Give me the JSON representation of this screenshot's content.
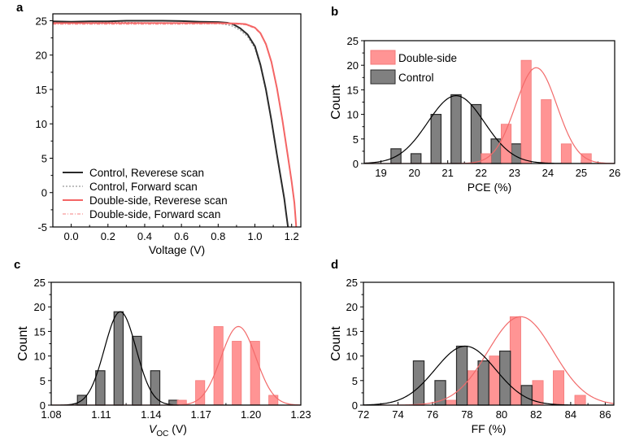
{
  "colors": {
    "control_bar": "#808080",
    "control_bar_edge": "#2b2b2b",
    "control_fit": "#000000",
    "double_bar": "#ff9494",
    "double_bar_edge": "#f47a7a",
    "double_fit": "#f26a6a",
    "control_jv_rev": "#2a2a2a",
    "control_jv_fwd": "#999999",
    "double_jv_rev": "#f46565",
    "double_jv_fwd": "#f79a9a"
  },
  "chart_data": [
    {
      "panel": "a",
      "type": "line",
      "title": "",
      "xlabel": "Voltage (V)",
      "ylabel": "",
      "xlim": [
        -0.1,
        1.25
      ],
      "ylim": [
        -5,
        26
      ],
      "xticks": [
        "0.0",
        "0.2",
        "0.4",
        "0.6",
        "0.8",
        "1.0",
        "1.2"
      ],
      "xtick_values": [
        0.0,
        0.2,
        0.4,
        0.6,
        0.8,
        1.0,
        1.2
      ],
      "yticks": [
        "-5",
        "0",
        "5",
        "10",
        "15",
        "20",
        "25"
      ],
      "ytick_values": [
        -5,
        0,
        5,
        10,
        15,
        20,
        25
      ],
      "legend_position": "bottom-left",
      "series": [
        {
          "name": "Control, Reverese scan",
          "style": "solid",
          "color_key": "control_jv_rev",
          "x": [
            -0.1,
            0.0,
            0.1,
            0.2,
            0.3,
            0.4,
            0.5,
            0.6,
            0.7,
            0.8,
            0.85,
            0.88,
            0.92,
            0.96,
            1.0,
            1.03,
            1.06,
            1.09,
            1.12,
            1.14,
            1.16,
            1.17,
            1.18
          ],
          "y": [
            24.9,
            24.85,
            24.9,
            24.9,
            25.0,
            25.0,
            25.0,
            24.95,
            24.85,
            24.8,
            24.7,
            24.5,
            23.9,
            23.0,
            21.3,
            18.6,
            15.0,
            10.5,
            5.5,
            2.3,
            -0.9,
            -3.0,
            -5.0
          ]
        },
        {
          "name": "Control, Forward scan",
          "style": "dotted",
          "color_key": "control_jv_fwd",
          "x": [
            -0.1,
            0.0,
            0.1,
            0.2,
            0.3,
            0.4,
            0.5,
            0.6,
            0.7,
            0.8,
            0.85,
            0.88,
            0.92,
            0.96,
            1.0,
            1.03,
            1.06,
            1.09,
            1.12,
            1.14,
            1.16,
            1.17,
            1.18
          ],
          "y": [
            24.75,
            24.7,
            24.7,
            24.75,
            24.75,
            24.7,
            24.7,
            24.7,
            24.65,
            24.6,
            24.4,
            24.2,
            23.6,
            22.7,
            21.0,
            18.4,
            14.8,
            10.3,
            5.3,
            2.1,
            -1.0,
            -3.1,
            -5.0
          ]
        },
        {
          "name": "Double-side, Reverese scan",
          "style": "solid",
          "color_key": "double_jv_rev",
          "x": [
            -0.1,
            0.0,
            0.2,
            0.4,
            0.6,
            0.8,
            0.9,
            0.95,
            1.0,
            1.03,
            1.06,
            1.09,
            1.12,
            1.15,
            1.18,
            1.2,
            1.215,
            1.225
          ],
          "y": [
            24.65,
            24.65,
            24.65,
            24.65,
            24.65,
            24.65,
            24.6,
            24.5,
            24.0,
            23.2,
            21.6,
            19.0,
            15.2,
            10.5,
            5.2,
            1.6,
            -1.5,
            -5.0
          ]
        },
        {
          "name": "Double-side, Forward scan",
          "style": "dashdot",
          "color_key": "double_jv_fwd",
          "x": [
            -0.1,
            0.0,
            0.2,
            0.4,
            0.6,
            0.8,
            0.9,
            0.95,
            1.0,
            1.03,
            1.06,
            1.09,
            1.12,
            1.15,
            1.18,
            1.2,
            1.215,
            1.225
          ],
          "y": [
            24.5,
            24.5,
            24.5,
            24.5,
            24.5,
            24.55,
            24.5,
            24.4,
            23.9,
            23.1,
            21.5,
            18.9,
            15.1,
            10.4,
            5.1,
            1.5,
            -1.6,
            -5.0
          ]
        }
      ]
    },
    {
      "panel": "b",
      "type": "bar",
      "title": "",
      "xlabel": "PCE (%)",
      "ylabel": "Count",
      "xlim": [
        18.5,
        26
      ],
      "ylim": [
        0,
        25
      ],
      "xticks": [
        "19",
        "20",
        "21",
        "22",
        "23",
        "24",
        "25",
        "26"
      ],
      "xtick_values": [
        19,
        20,
        21,
        22,
        23,
        24,
        25,
        26
      ],
      "yticks": [
        "0",
        "5",
        "10",
        "15",
        "20",
        "25"
      ],
      "ytick_values": [
        0,
        5,
        10,
        15,
        20,
        25
      ],
      "bin_width": 0.3,
      "legend_position": "top-left",
      "legend": [
        "Double-side",
        "Control"
      ],
      "series": [
        {
          "name": "Control",
          "color_key": "control_bar",
          "x": [
            19.45,
            20.05,
            20.65,
            21.25,
            21.85,
            22.45,
            23.05
          ],
          "values": [
            3,
            2,
            10,
            14,
            12,
            5,
            4
          ],
          "fit": {
            "type": "gaussian",
            "mean": 21.25,
            "sd": 0.85,
            "peak": 13.8
          }
        },
        {
          "name": "Double-side",
          "color_key": "double_bar",
          "x": [
            22.15,
            22.75,
            23.35,
            23.95,
            24.55,
            25.15
          ],
          "values": [
            2,
            8,
            21,
            13,
            4,
            2
          ],
          "fit": {
            "type": "gaussian",
            "mean": 23.65,
            "sd": 0.62,
            "peak": 19.5
          }
        }
      ]
    },
    {
      "panel": "c",
      "type": "bar",
      "title": "",
      "xlabel": "V_OC (V)",
      "xlabel_main": "V",
      "xlabel_sub": "OC",
      "xlabel_unit": " (V)",
      "ylabel": "Count",
      "xlim": [
        1.08,
        1.23
      ],
      "ylim": [
        0,
        25
      ],
      "xticks": [
        "1.08",
        "1.11",
        "1.14",
        "1.17",
        "1.20",
        "1.23"
      ],
      "xtick_values": [
        1.08,
        1.11,
        1.14,
        1.17,
        1.2,
        1.23
      ],
      "yticks": [
        "0",
        "5",
        "10",
        "15",
        "20",
        "25"
      ],
      "ytick_values": [
        0,
        5,
        10,
        15,
        20,
        25
      ],
      "bin_width": 0.0055,
      "series": [
        {
          "name": "Control",
          "color_key": "control_bar",
          "x": [
            1.0985,
            1.1095,
            1.1205,
            1.1315,
            1.1425,
            1.1535
          ],
          "values": [
            2,
            7,
            19,
            14,
            7,
            1
          ],
          "fit": {
            "type": "gaussian",
            "mean": 1.1215,
            "sd": 0.0095,
            "peak": 19.0
          }
        },
        {
          "name": "Double-side",
          "color_key": "double_bar",
          "x": [
            1.1585,
            1.1695,
            1.1805,
            1.1915,
            1.2025,
            1.2135
          ],
          "values": [
            1,
            5,
            16,
            13,
            13,
            2
          ],
          "fit": {
            "type": "gaussian",
            "mean": 1.1925,
            "sd": 0.0105,
            "peak": 16.0
          }
        }
      ]
    },
    {
      "panel": "d",
      "type": "bar",
      "title": "",
      "xlabel": "FF (%)",
      "ylabel": "Count",
      "xlim": [
        72,
        86.5
      ],
      "ylim": [
        0,
        25
      ],
      "xticks": [
        "72",
        "74",
        "76",
        "78",
        "80",
        "82",
        "84",
        "86"
      ],
      "xtick_values": [
        72,
        74,
        76,
        78,
        80,
        82,
        84,
        86
      ],
      "yticks": [
        "0",
        "5",
        "10",
        "15",
        "20",
        "25"
      ],
      "ytick_values": [
        0,
        5,
        10,
        15,
        20,
        25
      ],
      "bin_width": 0.62,
      "series": [
        {
          "name": "Double-side",
          "color_key": "double_bar",
          "x": [
            77.1,
            78.3,
            79.6,
            80.8,
            82.1,
            83.3,
            84.55
          ],
          "values": [
            1,
            7,
            10,
            18,
            5,
            7,
            2
          ],
          "fit": {
            "type": "gaussian",
            "mean": 81.1,
            "sd": 1.9,
            "peak": 18.0
          }
        },
        {
          "name": "Control",
          "color_key": "control_bar",
          "x": [
            75.2,
            76.45,
            77.7,
            78.95,
            80.2,
            81.45
          ],
          "values": [
            9,
            5,
            12,
            9,
            11,
            4
          ],
          "fit": {
            "type": "gaussian",
            "mean": 77.9,
            "sd": 1.75,
            "peak": 12.0
          }
        }
      ]
    }
  ]
}
